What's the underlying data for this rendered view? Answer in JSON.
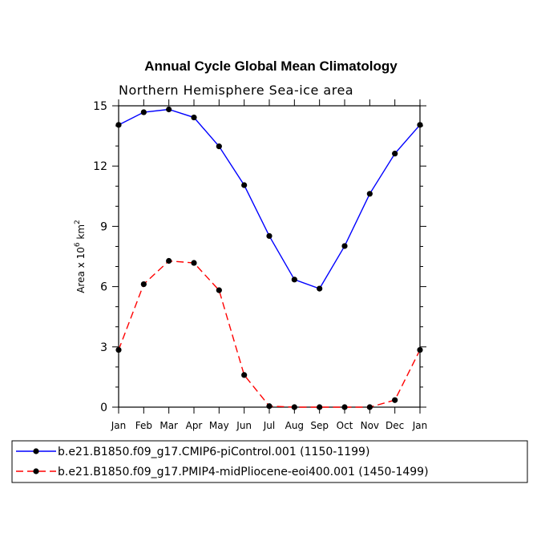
{
  "chart_data": {
    "type": "line",
    "title": "Annual Cycle Global Mean Climatology",
    "subtitle": "Northern Hemisphere Sea-ice area",
    "ylabel": "Area x 10",
    "ylabel_sup": "6",
    "ylabel_unit": "km",
    "ylabel_unit_sup": "2",
    "xlabel": "",
    "categories": [
      "Jan",
      "Feb",
      "Mar",
      "Apr",
      "May",
      "Jun",
      "Jul",
      "Aug",
      "Sep",
      "Oct",
      "Nov",
      "Dec",
      "Jan"
    ],
    "ylim": [
      0,
      15
    ],
    "yticks": [
      0,
      3,
      6,
      9,
      12,
      15
    ],
    "grid": false,
    "legend_position": "bottom",
    "series": [
      {
        "name": "b.e21.B1850.f09_g17.CMIP6-piControl.001 (1150-1199)",
        "color": "#0000ff",
        "line_style": "solid",
        "values": [
          14.05,
          14.68,
          14.82,
          14.42,
          12.98,
          11.05,
          8.52,
          6.35,
          5.9,
          8.02,
          10.62,
          12.62,
          14.05
        ]
      },
      {
        "name": "b.e21.B1850.f09_g17.PMIP4-midPliocene-eoi400.001 (1450-1499)",
        "color": "#ff0000",
        "line_style": "dashed",
        "values": [
          2.85,
          6.12,
          7.28,
          7.18,
          5.82,
          1.6,
          0.05,
          0.0,
          0.0,
          0.0,
          0.0,
          0.35,
          2.85
        ]
      }
    ]
  }
}
